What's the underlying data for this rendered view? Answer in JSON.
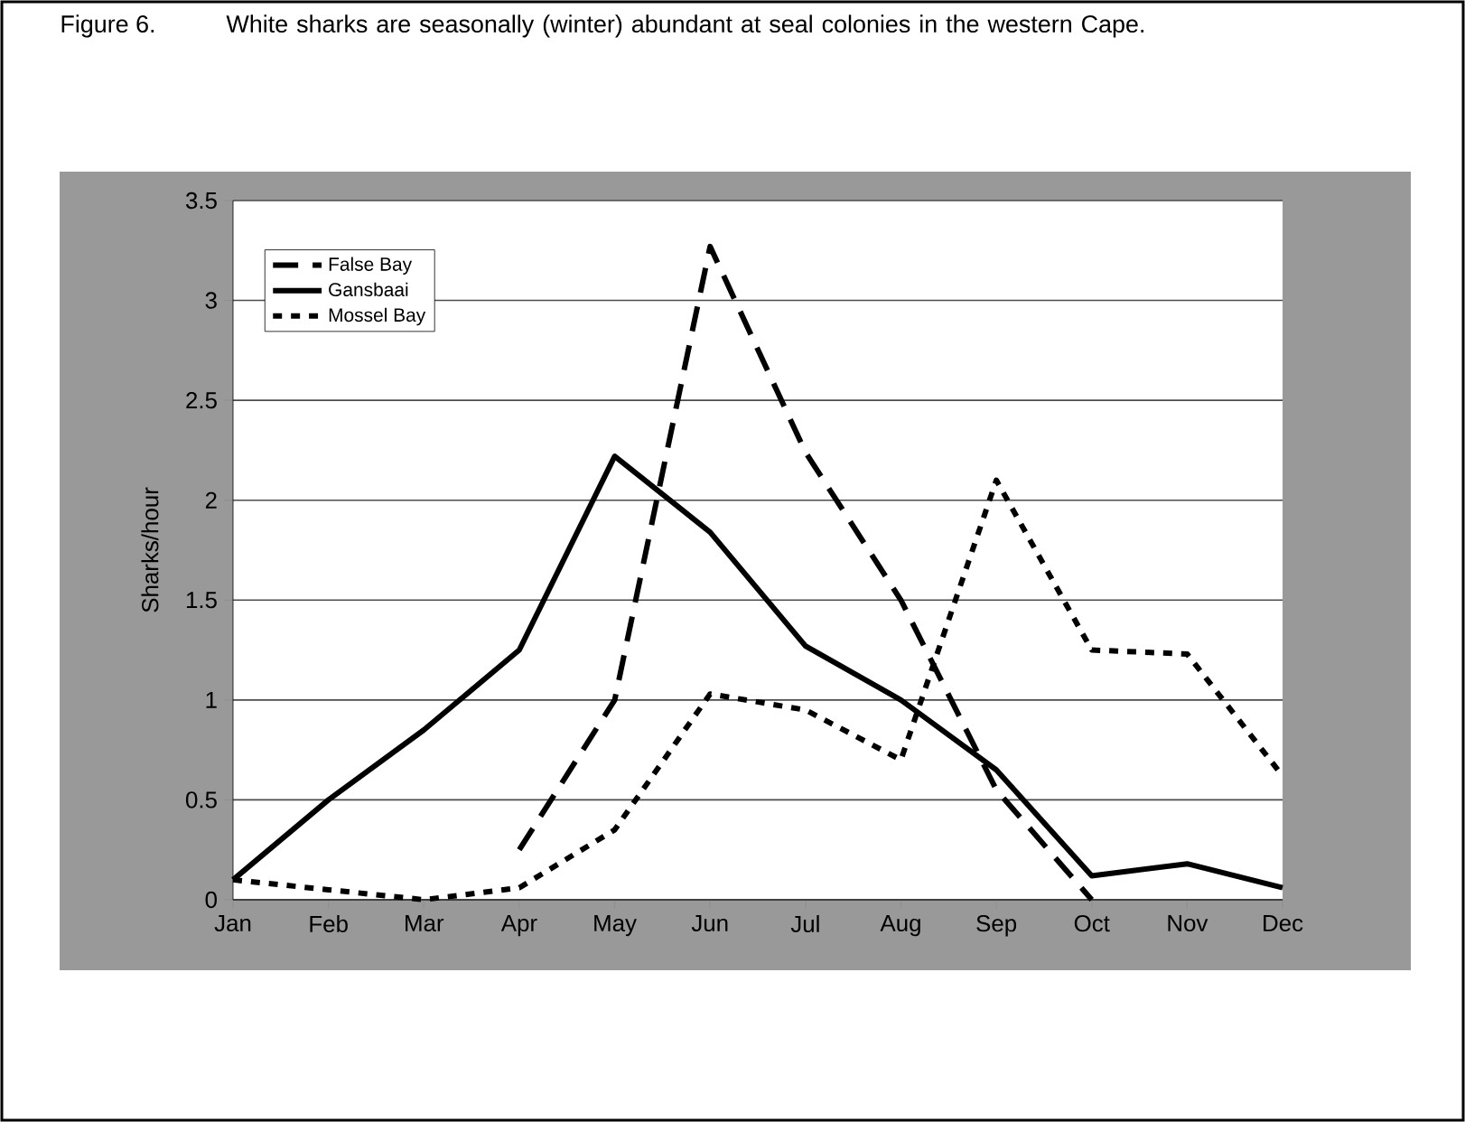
{
  "chart_data": {
    "type": "line",
    "title": "White sharks are seasonally (winter) abundant at seal colonies in the western Cape.",
    "annotations": [
      "Figure 6."
    ],
    "ylabel": "Sharks/hour",
    "categories": [
      "Jan",
      "Feb",
      "Mar",
      "Apr",
      "May",
      "Jun",
      "Jul",
      "Aug",
      "Sep",
      "Oct",
      "Nov",
      "Dec"
    ],
    "series": [
      {
        "name": "False Bay",
        "color": "#000000",
        "line_style": "dashed",
        "values": [
          null,
          null,
          null,
          0.25,
          1.0,
          3.27,
          2.24,
          1.5,
          0.55,
          0,
          null,
          null
        ]
      },
      {
        "name": "Gansbaai",
        "color": "#000000",
        "line_style": "solid",
        "values": [
          0.1,
          0.5,
          0.85,
          1.25,
          2.22,
          1.84,
          1.27,
          1.0,
          0.65,
          0.12,
          0.18,
          0.06
        ]
      },
      {
        "name": "Mossel Bay",
        "color": "#000000",
        "line_style": "dotted",
        "values": [
          0.1,
          0.05,
          0.0,
          0.06,
          0.35,
          1.03,
          0.95,
          0.7,
          2.1,
          1.25,
          1.23,
          0.62
        ]
      }
    ],
    "ylim": [
      0,
      3.5
    ],
    "yticks": [
      0,
      0.5,
      1,
      1.5,
      2,
      2.5,
      3,
      3.5
    ],
    "grid": "y",
    "legend": "top left",
    "marker": "none"
  }
}
